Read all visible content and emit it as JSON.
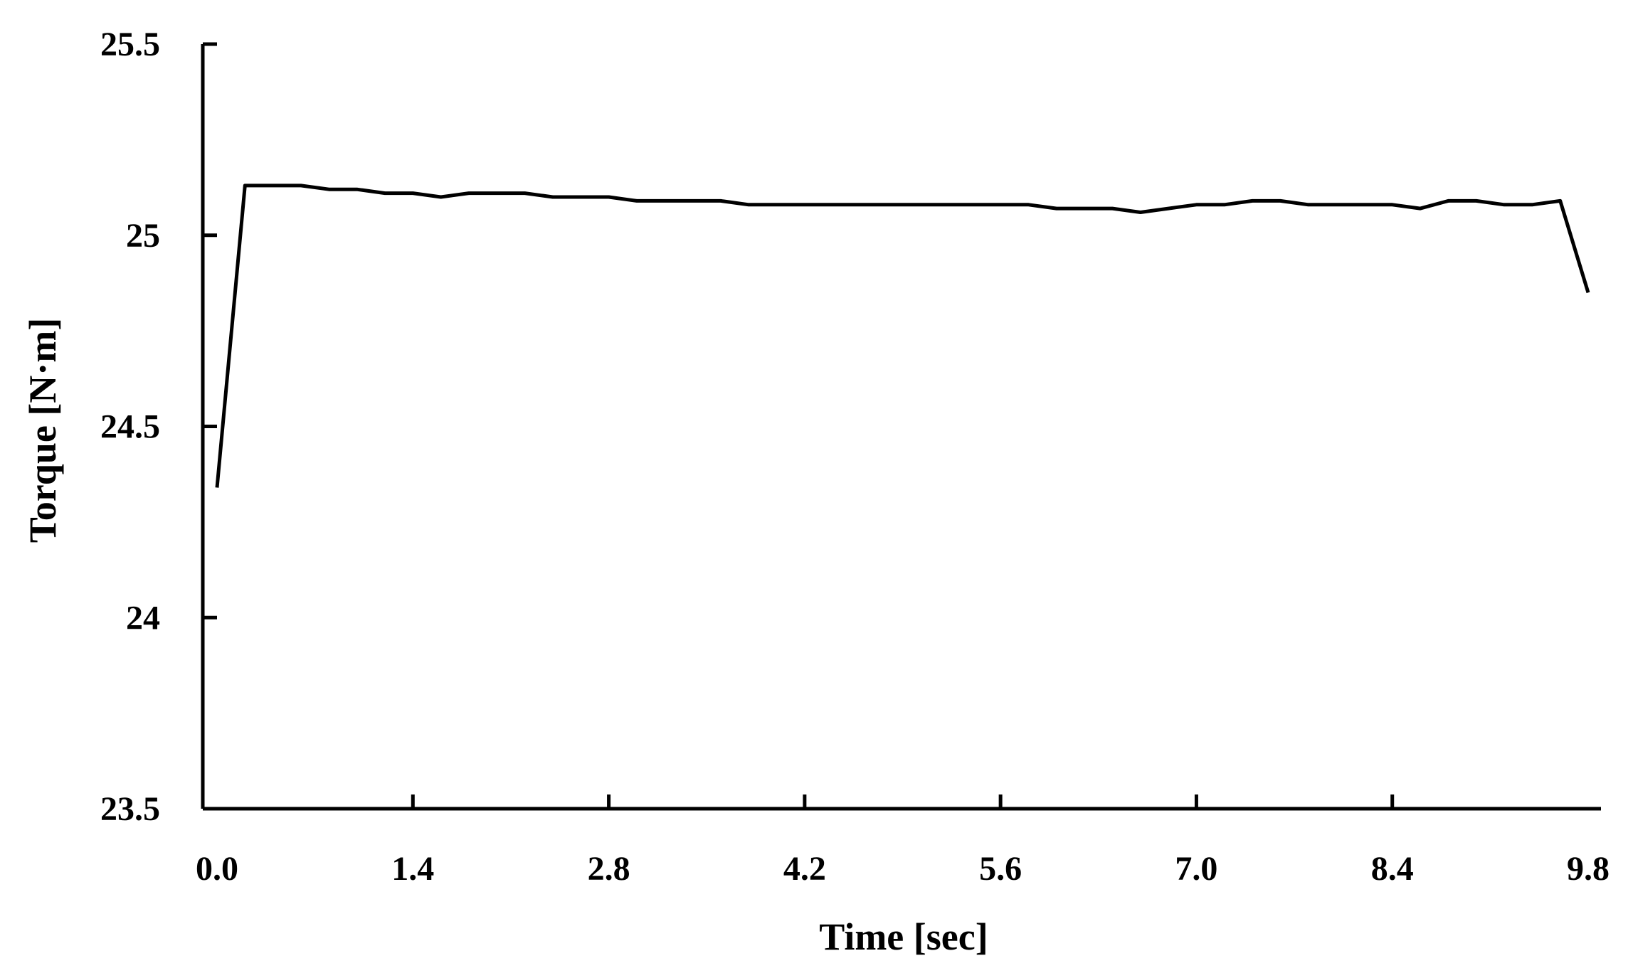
{
  "chart_data": {
    "type": "line",
    "title": "",
    "xlabel": "Time [sec]",
    "ylabel": "Torque [N·m]",
    "xlim": [
      0.0,
      9.8
    ],
    "ylim": [
      23.5,
      25.5
    ],
    "xticks": [
      "0.0",
      "1.4",
      "2.8",
      "4.2",
      "5.6",
      "7.0",
      "8.4",
      "9.8"
    ],
    "yticks": [
      "23.5",
      "24",
      "24.5",
      "25",
      "25.5"
    ],
    "grid": false,
    "legend": "none",
    "line_color": "#000000",
    "series": [
      {
        "x": [
          0.0,
          0.2,
          0.4,
          0.6,
          0.8,
          1.0,
          1.2,
          1.4,
          1.6,
          1.8,
          2.0,
          2.2,
          2.4,
          2.6,
          2.8,
          3.0,
          3.2,
          3.4,
          3.6,
          3.8,
          4.0,
          4.2,
          4.4,
          4.6,
          4.8,
          5.0,
          5.2,
          5.4,
          5.6,
          5.8,
          6.0,
          6.2,
          6.4,
          6.6,
          6.8,
          7.0,
          7.2,
          7.4,
          7.6,
          7.8,
          8.0,
          8.2,
          8.4,
          8.6,
          8.8,
          9.0,
          9.2,
          9.4,
          9.6,
          9.8
        ],
        "values": [
          24.34,
          25.13,
          25.13,
          25.13,
          25.12,
          25.12,
          25.11,
          25.11,
          25.1,
          25.11,
          25.11,
          25.11,
          25.1,
          25.1,
          25.1,
          25.09,
          25.09,
          25.09,
          25.09,
          25.08,
          25.08,
          25.08,
          25.08,
          25.08,
          25.08,
          25.08,
          25.08,
          25.08,
          25.08,
          25.08,
          25.07,
          25.07,
          25.07,
          25.06,
          25.07,
          25.08,
          25.08,
          25.09,
          25.09,
          25.08,
          25.08,
          25.08,
          25.08,
          25.07,
          25.09,
          25.09,
          25.08,
          25.08,
          25.09,
          24.85
        ]
      }
    ]
  }
}
